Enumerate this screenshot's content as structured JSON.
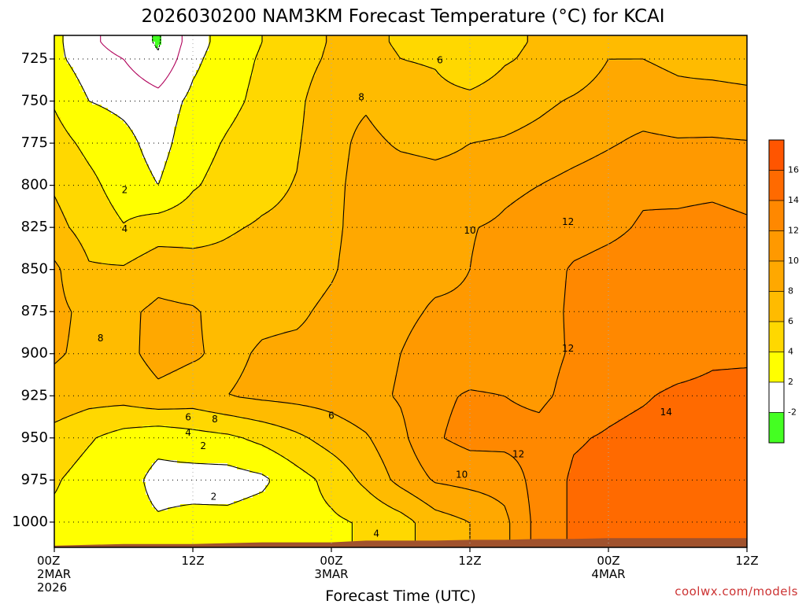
{
  "chart_data": {
    "type": "heatmap",
    "title": "2026030200 NAM3KM Forecast Temperature (°C) for KCAI",
    "xlabel": "Forecast Time (UTC)",
    "ylabel": "",
    "credit": "coolwx.com/models",
    "x_hours": [
      0,
      12,
      24,
      36,
      48,
      60
    ],
    "x_tick_labels": [
      {
        "hour": 0,
        "line1": "00Z",
        "line2": "2MAR",
        "line3": "2026"
      },
      {
        "hour": 12,
        "line1": "12Z",
        "line2": "",
        "line3": ""
      },
      {
        "hour": 24,
        "line1": "00Z",
        "line2": "3MAR",
        "line3": ""
      },
      {
        "hour": 36,
        "line1": "12Z",
        "line2": "",
        "line3": ""
      },
      {
        "hour": 48,
        "line1": "00Z",
        "line2": "4MAR",
        "line3": ""
      },
      {
        "hour": 60,
        "line1": "12Z",
        "line2": "",
        "line3": ""
      }
    ],
    "xlim": [
      0,
      60
    ],
    "pressure_levels": [
      725,
      750,
      775,
      800,
      825,
      850,
      875,
      900,
      925,
      950,
      975,
      1000
    ],
    "ylim": [
      711,
      1015
    ],
    "y_tick_labels": [
      "725",
      "750",
      "775",
      "800",
      "825",
      "850",
      "875",
      "900",
      "925",
      "950",
      "975",
      "1000"
    ],
    "grid": true,
    "legend_position": "right",
    "colorbar": {
      "labels": [
        "16",
        "14",
        "12",
        "10",
        "8",
        "6",
        "4",
        "2",
        "-2"
      ],
      "bins": [
        {
          "min": 16,
          "max": 18,
          "color": "#ff5500"
        },
        {
          "min": 14,
          "max": 16,
          "color": "#ff6a00"
        },
        {
          "min": 12,
          "max": 14,
          "color": "#ff8800"
        },
        {
          "min": 10,
          "max": 12,
          "color": "#ff9900"
        },
        {
          "min": 8,
          "max": 10,
          "color": "#ffa800"
        },
        {
          "min": 6,
          "max": 8,
          "color": "#ffbb00"
        },
        {
          "min": 4,
          "max": 6,
          "color": "#ffd800"
        },
        {
          "min": 2,
          "max": 4,
          "color": "#ffff00"
        },
        {
          "min": -2,
          "max": 2,
          "color": "#ffffff"
        },
        {
          "min": -4,
          "max": -2,
          "color": "#44ff22"
        }
      ]
    },
    "contour_levels": [
      -2,
      0,
      2,
      4,
      6,
      8,
      10,
      12,
      14
    ],
    "contour_labels": [
      "2",
      "4",
      "8",
      "6",
      "8",
      "10",
      "12",
      "14",
      "6",
      "4",
      "2",
      "2",
      "8",
      "6",
      "10",
      "4",
      "12",
      "12"
    ],
    "temperature_field": {
      "hours": [
        0,
        3,
        6,
        9,
        12,
        15,
        18,
        21,
        24,
        27,
        30,
        33,
        36,
        39,
        42,
        45,
        48,
        51,
        54,
        57,
        60
      ],
      "levels": [
        715,
        725,
        750,
        775,
        800,
        825,
        850,
        875,
        900,
        925,
        950,
        975,
        1000,
        1015
      ],
      "rows": [
        [
          2.5,
          0.5,
          -1,
          -2.2,
          1,
          3,
          4,
          4.8,
          6.2,
          6.4,
          5.8,
          5.6,
          4.2,
          5.6,
          6.2,
          6.6,
          7.6,
          7.6,
          7.2,
          6.8,
          6.6
        ],
        [
          2.5,
          1,
          0,
          -1.8,
          1.5,
          3.2,
          4.2,
          5,
          6.4,
          6.6,
          6,
          5.8,
          4.6,
          5.8,
          6.4,
          6.8,
          8,
          8,
          7.6,
          7.2,
          7
        ],
        [
          3.8,
          2,
          1.5,
          0.8,
          2.5,
          3.5,
          4.5,
          5.5,
          7.5,
          7.8,
          7,
          6.6,
          6.5,
          7,
          7.6,
          8.2,
          8.8,
          9,
          8.6,
          8.8,
          8.6
        ],
        [
          4.8,
          3.5,
          2.6,
          1.2,
          3.2,
          4.2,
          5,
          5.8,
          7.5,
          8.4,
          7.8,
          7.6,
          8,
          8.2,
          8.6,
          9.2,
          9.8,
          10.4,
          10.2,
          10.2,
          10.1
        ],
        [
          5.8,
          4.5,
          3.1,
          2,
          3.8,
          4.7,
          5.5,
          6.1,
          7.6,
          8.6,
          8.8,
          8.6,
          8.6,
          9.6,
          10,
          10.6,
          11.1,
          11.7,
          11.5,
          11.6,
          11.3
        ],
        [
          6.6,
          5.2,
          4.1,
          5,
          5.2,
          5.8,
          6.2,
          6.4,
          7.6,
          8.8,
          9,
          9.4,
          9.9,
          10.3,
          10.8,
          11.2,
          11.6,
          12.2,
          12.4,
          12.6,
          12.3
        ],
        [
          8.4,
          6.2,
          6.2,
          7.2,
          6.8,
          6.6,
          6.9,
          7.1,
          7.8,
          8.9,
          9.5,
          9.6,
          10,
          10.6,
          11.2,
          12.2,
          12.6,
          12.8,
          12.8,
          13.2,
          12.7
        ],
        [
          8.4,
          7.6,
          7.6,
          8.4,
          8.2,
          7.3,
          7.6,
          7.7,
          8.4,
          9,
          9.6,
          10.2,
          10.2,
          10.6,
          11.3,
          12.3,
          12.6,
          12.7,
          12.8,
          13.4,
          13.1
        ],
        [
          8.2,
          7.6,
          7.5,
          8.6,
          8.2,
          7.6,
          8.2,
          8.4,
          8.6,
          9.2,
          10,
          10.8,
          10.8,
          10.8,
          11.4,
          12.2,
          12.6,
          12.7,
          13,
          13.6,
          13.6
        ],
        [
          7.4,
          6.8,
          6.8,
          7.6,
          7.2,
          8,
          8.4,
          8.6,
          8.8,
          9.4,
          10.2,
          11.6,
          12.2,
          12,
          11.6,
          12.6,
          13.4,
          13.8,
          14.4,
          14.6,
          14.8
        ],
        [
          5.2,
          4.2,
          3.2,
          2.6,
          3.2,
          3.6,
          4.5,
          5.6,
          6.8,
          7.8,
          9.5,
          11.8,
          12.6,
          12.6,
          12.6,
          13.8,
          14.2,
          14.6,
          14.8,
          15,
          15
        ],
        [
          4.2,
          3.2,
          2.8,
          1.4,
          1.2,
          1.1,
          1.6,
          3.2,
          4.6,
          6.5,
          8.6,
          10.2,
          10.6,
          10.8,
          12.8,
          14.3,
          14.6,
          14.9,
          15,
          15.2,
          15.3
        ],
        [
          3.6,
          3.4,
          2.6,
          2.2,
          2.6,
          2.6,
          3,
          3.4,
          3.7,
          4.2,
          5.2,
          7.1,
          8,
          9.5,
          12.8,
          14.3,
          14.6,
          14.9,
          15,
          15.2,
          15.3
        ],
        [
          3.6,
          3.4,
          2.6,
          2.2,
          2.6,
          2.6,
          3,
          3.4,
          3.7,
          4.2,
          5.2,
          7.1,
          8,
          9.5,
          12.8,
          14.3,
          14.6,
          14.9,
          15,
          15.2,
          15.3
        ]
      ]
    },
    "surface_pressure_hpa": [
      1014,
      1013.5,
      1013,
      1013,
      1013,
      1012.5,
      1012,
      1012,
      1012,
      1011,
      1011,
      1011,
      1010.5,
      1010.5,
      1010,
      1010,
      1009.5,
      1009.5,
      1009.5,
      1009.5,
      1009.5
    ],
    "surface_color": "#a0522d",
    "annotations": []
  }
}
